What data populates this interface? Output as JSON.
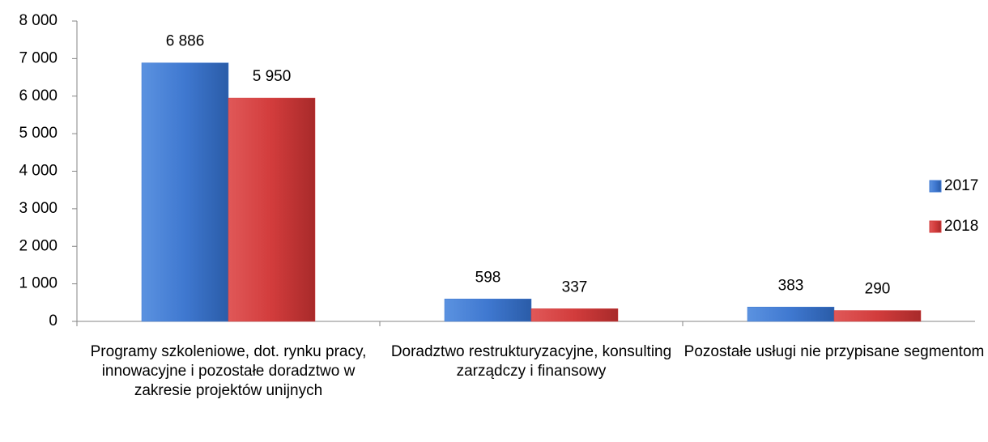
{
  "chart_data": {
    "type": "bar",
    "categories": [
      "Programy szkoleniowe, dot. rynku pracy, innowacyjne i pozostałe doradztwo w zakresie projektów unijnych",
      "Doradztwo restrukturyzacyjne, konsulting zarządczy i finansowy",
      "Pozostałe usługi nie przypisane segmentom"
    ],
    "series": [
      {
        "name": "2017",
        "color": "#3f78d0",
        "values": [
          6886,
          598,
          383
        ],
        "value_labels": [
          "6 886",
          "598",
          "383"
        ]
      },
      {
        "name": "2018",
        "color": "#d23c3c",
        "values": [
          5950,
          337,
          290
        ],
        "value_labels": [
          "5 950",
          "337",
          "290"
        ]
      }
    ],
    "ylim": [
      0,
      8000
    ],
    "yticks": [
      {
        "value": 0,
        "label": "0"
      },
      {
        "value": 1000,
        "label": "1 000"
      },
      {
        "value": 2000,
        "label": "2 000"
      },
      {
        "value": 3000,
        "label": "3 000"
      },
      {
        "value": 4000,
        "label": "4 000"
      },
      {
        "value": 5000,
        "label": "5 000"
      },
      {
        "value": 6000,
        "label": "6 000"
      },
      {
        "value": 7000,
        "label": "7 000"
      },
      {
        "value": 8000,
        "label": "8 000"
      }
    ],
    "legend": "right"
  }
}
